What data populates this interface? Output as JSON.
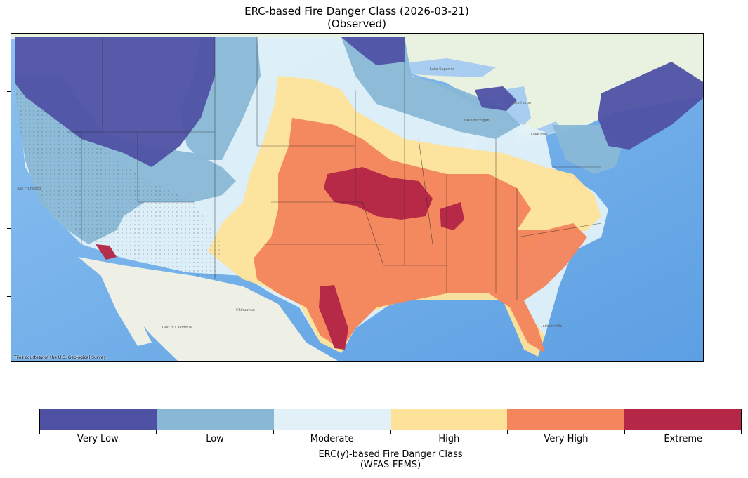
{
  "title": {
    "line1": "ERC-based Fire Danger Class (2026-03-21)",
    "line2": "(Observed)"
  },
  "map": {
    "attribution": "Tiles courtesy of the U.S. Geological Survey",
    "basemap_labels": {
      "lake_superior": "Lake Superior",
      "lake_michigan": "Lake Michigan",
      "lake_huron": "Lake Huron",
      "lake_erie": "Lake Erie",
      "chihuahua": "Chihuahua",
      "gulf_of_california": "Gulf of California",
      "jacksonville": "Jacksonville",
      "san_francisco": "San Francisco"
    },
    "classes_shown": [
      "Very Low",
      "Low",
      "Moderate",
      "High",
      "Very High",
      "Extreme"
    ]
  },
  "colorbar": {
    "title_line1": "ERC(y)-based Fire Danger Class",
    "title_line2": "(WFAS-FEMS)",
    "classes": [
      {
        "label": "Very Low",
        "color": "#4f51a4"
      },
      {
        "label": "Low",
        "color": "#89b8d6"
      },
      {
        "label": "Moderate",
        "color": "#e2f1f8"
      },
      {
        "label": "High",
        "color": "#fde29a"
      },
      {
        "label": "Very High",
        "color": "#f4855d"
      },
      {
        "label": "Extreme",
        "color": "#b42746"
      }
    ]
  },
  "colors": {
    "ocean": "#5fa3e6",
    "land": "#e8efe3",
    "canada": "#e9f1e0",
    "great_lakes": "#a9cdf0"
  }
}
